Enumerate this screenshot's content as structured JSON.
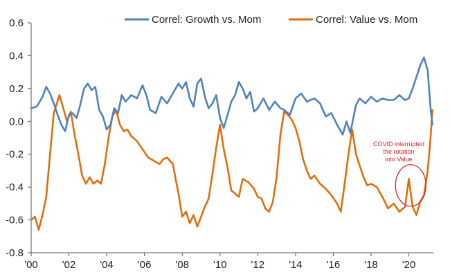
{
  "chart_data": {
    "type": "line",
    "title": "",
    "xlabel": "",
    "ylabel": "",
    "xlim": [
      2000.0,
      2021.3
    ],
    "ylim": [
      -0.8,
      0.6
    ],
    "y_ticks": [
      0.6,
      0.4,
      0.2,
      0.0,
      -0.2,
      -0.4,
      -0.6,
      -0.8
    ],
    "y_tick_labels": [
      "0.6",
      "0.4",
      "0.2",
      "0.0",
      "-0.2",
      "-0.4",
      "-0.6",
      "-0.8"
    ],
    "x_ticks": [
      2000,
      2002,
      2004,
      2006,
      2008,
      2010,
      2012,
      2014,
      2016,
      2018,
      2020
    ],
    "x_tick_labels": [
      "'00",
      "'02",
      "'04",
      "'06",
      "'08",
      "'10",
      "'12",
      "'14",
      "'16",
      "'18",
      "'20"
    ],
    "grid": false,
    "legend_position": "top",
    "series": [
      {
        "name": "Correl: Growth vs. Mom",
        "color": "#4f81bd",
        "points": [
          [
            2000.0,
            0.08
          ],
          [
            2000.3,
            0.09
          ],
          [
            2000.6,
            0.15
          ],
          [
            2000.8,
            0.21
          ],
          [
            2001.0,
            0.17
          ],
          [
            2001.2,
            0.11
          ],
          [
            2001.4,
            0.04
          ],
          [
            2001.6,
            -0.02
          ],
          [
            2001.8,
            -0.06
          ],
          [
            2002.0,
            0.04
          ],
          [
            2002.2,
            0.05
          ],
          [
            2002.4,
            0.02
          ],
          [
            2002.6,
            0.1
          ],
          [
            2002.8,
            0.2
          ],
          [
            2003.0,
            0.23
          ],
          [
            2003.2,
            0.19
          ],
          [
            2003.4,
            0.21
          ],
          [
            2003.6,
            0.07
          ],
          [
            2003.8,
            0.03
          ],
          [
            2004.0,
            -0.05
          ],
          [
            2004.2,
            -0.02
          ],
          [
            2004.4,
            0.08
          ],
          [
            2004.6,
            0.05
          ],
          [
            2004.8,
            0.16
          ],
          [
            2005.0,
            0.12
          ],
          [
            2005.3,
            0.16
          ],
          [
            2005.6,
            0.14
          ],
          [
            2005.9,
            0.22
          ],
          [
            2006.1,
            0.16
          ],
          [
            2006.3,
            0.07
          ],
          [
            2006.6,
            0.05
          ],
          [
            2006.9,
            0.15
          ],
          [
            2007.2,
            0.11
          ],
          [
            2007.5,
            0.17
          ],
          [
            2007.8,
            0.23
          ],
          [
            2008.0,
            0.2
          ],
          [
            2008.2,
            0.24
          ],
          [
            2008.4,
            0.14
          ],
          [
            2008.6,
            0.09
          ],
          [
            2008.8,
            0.23
          ],
          [
            2009.0,
            0.26
          ],
          [
            2009.2,
            0.15
          ],
          [
            2009.4,
            0.08
          ],
          [
            2009.6,
            0.11
          ],
          [
            2009.8,
            0.16
          ],
          [
            2010.0,
            0.02
          ],
          [
            2010.2,
            -0.04
          ],
          [
            2010.4,
            0.04
          ],
          [
            2010.6,
            0.12
          ],
          [
            2010.8,
            0.16
          ],
          [
            2011.0,
            0.24
          ],
          [
            2011.2,
            0.2
          ],
          [
            2011.4,
            0.14
          ],
          [
            2011.6,
            0.18
          ],
          [
            2011.8,
            0.06
          ],
          [
            2012.0,
            0.08
          ],
          [
            2012.3,
            0.14
          ],
          [
            2012.6,
            0.07
          ],
          [
            2012.9,
            0.12
          ],
          [
            2013.2,
            0.08
          ],
          [
            2013.4,
            0.07
          ],
          [
            2013.7,
            0.04
          ],
          [
            2014.0,
            0.14
          ],
          [
            2014.3,
            0.17
          ],
          [
            2014.6,
            0.12
          ],
          [
            2015.0,
            0.14
          ],
          [
            2015.3,
            0.11
          ],
          [
            2015.6,
            0.03
          ],
          [
            2015.9,
            0.05
          ],
          [
            2016.2,
            -0.02
          ],
          [
            2016.5,
            -0.08
          ],
          [
            2016.7,
            0.0
          ],
          [
            2016.9,
            -0.07
          ],
          [
            2017.2,
            0.1
          ],
          [
            2017.4,
            0.14
          ],
          [
            2017.7,
            0.11
          ],
          [
            2018.0,
            0.15
          ],
          [
            2018.3,
            0.12
          ],
          [
            2018.6,
            0.14
          ],
          [
            2018.9,
            0.13
          ],
          [
            2019.2,
            0.13
          ],
          [
            2019.5,
            0.16
          ],
          [
            2019.8,
            0.13
          ],
          [
            2020.0,
            0.14
          ],
          [
            2020.2,
            0.2
          ],
          [
            2020.4,
            0.27
          ],
          [
            2020.6,
            0.34
          ],
          [
            2020.8,
            0.39
          ],
          [
            2021.0,
            0.31
          ],
          [
            2021.15,
            0.08
          ],
          [
            2021.25,
            -0.02
          ]
        ]
      },
      {
        "name": "Correl: Value vs. Mom",
        "color": "#e46c0a",
        "points": [
          [
            2000.0,
            -0.6
          ],
          [
            2000.2,
            -0.58
          ],
          [
            2000.4,
            -0.66
          ],
          [
            2000.6,
            -0.57
          ],
          [
            2000.8,
            -0.46
          ],
          [
            2001.0,
            -0.2
          ],
          [
            2001.2,
            0.05
          ],
          [
            2001.5,
            0.16
          ],
          [
            2001.7,
            0.08
          ],
          [
            2001.9,
            0.0
          ],
          [
            2002.1,
            0.06
          ],
          [
            2002.3,
            -0.08
          ],
          [
            2002.5,
            -0.2
          ],
          [
            2002.7,
            -0.33
          ],
          [
            2002.9,
            -0.38
          ],
          [
            2003.1,
            -0.34
          ],
          [
            2003.3,
            -0.38
          ],
          [
            2003.5,
            -0.36
          ],
          [
            2003.7,
            -0.38
          ],
          [
            2003.9,
            -0.26
          ],
          [
            2004.1,
            -0.1
          ],
          [
            2004.3,
            0.03
          ],
          [
            2004.5,
            0.07
          ],
          [
            2004.7,
            -0.02
          ],
          [
            2004.9,
            -0.06
          ],
          [
            2005.1,
            -0.05
          ],
          [
            2005.3,
            -0.09
          ],
          [
            2005.6,
            -0.12
          ],
          [
            2005.9,
            -0.17
          ],
          [
            2006.2,
            -0.22
          ],
          [
            2006.5,
            -0.24
          ],
          [
            2006.8,
            -0.26
          ],
          [
            2007.0,
            -0.23
          ],
          [
            2007.2,
            -0.22
          ],
          [
            2007.5,
            -0.26
          ],
          [
            2007.8,
            -0.44
          ],
          [
            2008.0,
            -0.58
          ],
          [
            2008.2,
            -0.55
          ],
          [
            2008.4,
            -0.62
          ],
          [
            2008.6,
            -0.57
          ],
          [
            2008.8,
            -0.64
          ],
          [
            2009.0,
            -0.58
          ],
          [
            2009.2,
            -0.52
          ],
          [
            2009.4,
            -0.47
          ],
          [
            2009.6,
            -0.32
          ],
          [
            2009.8,
            -0.16
          ],
          [
            2010.0,
            -0.02
          ],
          [
            2010.2,
            -0.17
          ],
          [
            2010.4,
            -0.28
          ],
          [
            2010.6,
            -0.42
          ],
          [
            2010.8,
            -0.44
          ],
          [
            2011.0,
            -0.46
          ],
          [
            2011.2,
            -0.35
          ],
          [
            2011.5,
            -0.37
          ],
          [
            2011.8,
            -0.41
          ],
          [
            2012.0,
            -0.46
          ],
          [
            2012.2,
            -0.47
          ],
          [
            2012.4,
            -0.53
          ],
          [
            2012.6,
            -0.55
          ],
          [
            2012.8,
            -0.49
          ],
          [
            2013.0,
            -0.34
          ],
          [
            2013.2,
            -0.08
          ],
          [
            2013.4,
            0.06
          ],
          [
            2013.6,
            0.04
          ],
          [
            2013.8,
            0.01
          ],
          [
            2014.0,
            -0.04
          ],
          [
            2014.2,
            -0.12
          ],
          [
            2014.4,
            -0.23
          ],
          [
            2014.6,
            -0.3
          ],
          [
            2014.8,
            -0.35
          ],
          [
            2015.0,
            -0.33
          ],
          [
            2015.3,
            -0.38
          ],
          [
            2015.6,
            -0.41
          ],
          [
            2015.9,
            -0.45
          ],
          [
            2016.2,
            -0.5
          ],
          [
            2016.4,
            -0.55
          ],
          [
            2016.6,
            -0.38
          ],
          [
            2016.8,
            -0.2
          ],
          [
            2017.0,
            -0.05
          ],
          [
            2017.2,
            -0.2
          ],
          [
            2017.4,
            -0.27
          ],
          [
            2017.6,
            -0.34
          ],
          [
            2017.8,
            -0.39
          ],
          [
            2018.0,
            -0.38
          ],
          [
            2018.3,
            -0.4
          ],
          [
            2018.6,
            -0.46
          ],
          [
            2018.9,
            -0.53
          ],
          [
            2019.2,
            -0.5
          ],
          [
            2019.5,
            -0.55
          ],
          [
            2019.8,
            -0.52
          ],
          [
            2020.0,
            -0.35
          ],
          [
            2020.2,
            -0.52
          ],
          [
            2020.4,
            -0.57
          ],
          [
            2020.6,
            -0.49
          ],
          [
            2020.8,
            -0.45
          ],
          [
            2021.0,
            -0.3
          ],
          [
            2021.15,
            -0.1
          ],
          [
            2021.25,
            0.07
          ]
        ]
      }
    ],
    "annotation": {
      "lines": [
        "COVID interrupted",
        "the rotation",
        "into Value"
      ],
      "color": "#e02020",
      "target_x": 2020.1,
      "target_y": -0.39
    }
  }
}
